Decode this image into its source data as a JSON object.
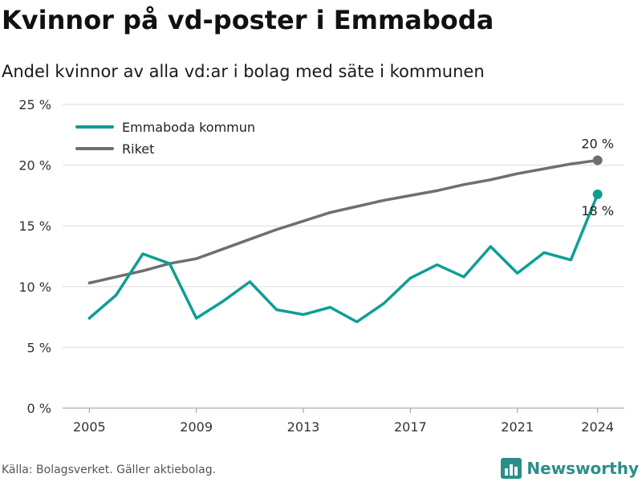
{
  "header": {
    "title": "Kvinnor på vd-poster i Emmaboda",
    "subtitle": "Andel kvinnor av alla vd:ar i bolag med säte i kommunen"
  },
  "footer": {
    "source": "Källa: Bolagsverket. Gäller aktiebolag.",
    "brand": "Newsworthy",
    "brand_icon": "bar-chart-logo-icon"
  },
  "colors": {
    "emmaboda": "#0f9e93",
    "riket": "#6e6e73",
    "grid": "#dddddd",
    "brand": "#2b8e8a"
  },
  "chart_data": {
    "type": "line",
    "x": [
      2005,
      2006,
      2007,
      2008,
      2009,
      2010,
      2011,
      2012,
      2013,
      2014,
      2015,
      2016,
      2017,
      2018,
      2019,
      2020,
      2021,
      2022,
      2023,
      2024
    ],
    "series": [
      {
        "name": "Emmaboda kommun",
        "color": "#0f9e93",
        "values": [
          7.4,
          9.3,
          12.7,
          11.9,
          7.4,
          8.8,
          10.4,
          8.1,
          7.7,
          8.3,
          7.1,
          8.6,
          10.7,
          11.8,
          10.8,
          13.3,
          11.1,
          12.8,
          12.2,
          17.6
        ],
        "end_label": "18 %"
      },
      {
        "name": "Riket",
        "color": "#6e6e73",
        "values": [
          10.3,
          10.8,
          11.3,
          11.9,
          12.3,
          13.1,
          13.9,
          14.7,
          15.4,
          16.1,
          16.6,
          17.1,
          17.5,
          17.9,
          18.4,
          18.8,
          19.3,
          19.7,
          20.1,
          20.4
        ],
        "end_label": "20 %"
      }
    ],
    "x_ticks": [
      "2005",
      "2009",
      "2013",
      "2017",
      "2021",
      "2024"
    ],
    "y_ticks": [
      "0 %",
      "5 %",
      "10 %",
      "15 %",
      "20 %",
      "25 %"
    ],
    "ylim": [
      0,
      25
    ],
    "grid": true,
    "legend_position": "top-left"
  }
}
